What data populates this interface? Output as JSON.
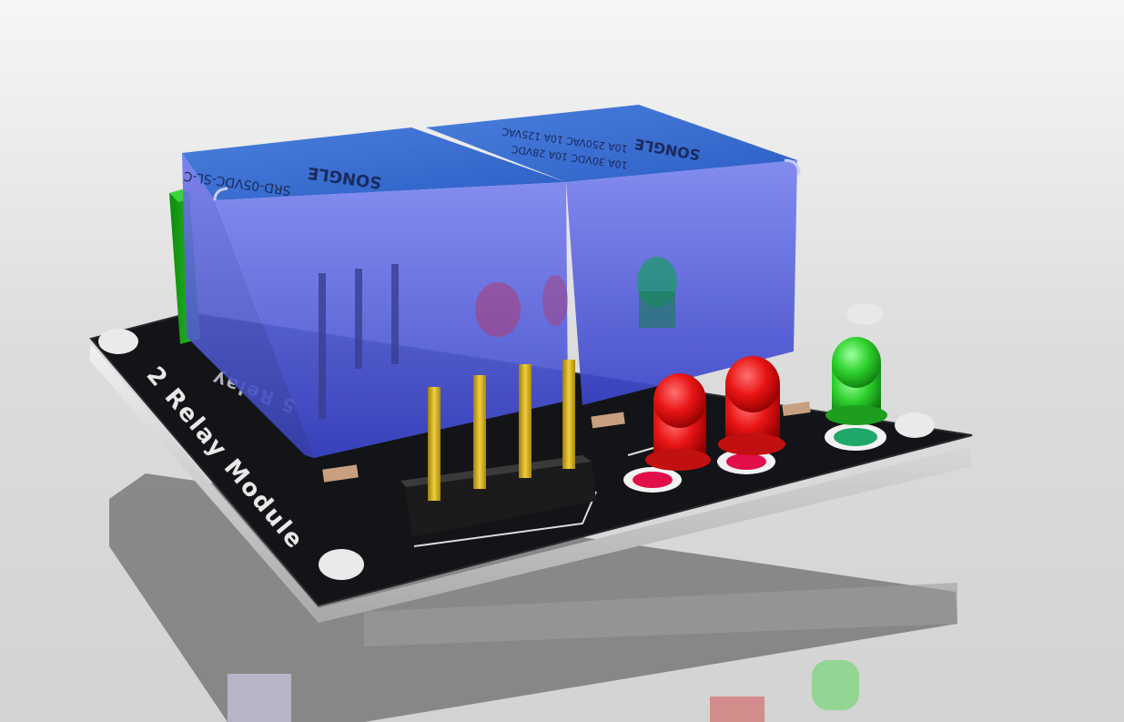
{
  "scene": {
    "board_label": "2 Relay Module",
    "relay_text": {
      "brand": "SONGLE",
      "line1": "SRD-05VDC-SL-C",
      "line2": "10A 250VAC 10A 125VAC",
      "line3": "10A 30VDC 10A 28VDC"
    },
    "silk_text": "5 Relay",
    "colors": {
      "background": "#e4e4e4",
      "pcb": "#141518",
      "relay": "#5a63dc",
      "relay_top": "#3f6fd0",
      "terminal": "#1ea51e",
      "led_red": "#e01010",
      "led_green": "#2cc42c",
      "pin_gold": "#d4b020",
      "header_black": "#1c1c1c"
    },
    "components": {
      "relays": [
        "relay-left",
        "relay-right"
      ],
      "leds": [
        "red",
        "red",
        "green"
      ],
      "header_pins": 4
    }
  }
}
